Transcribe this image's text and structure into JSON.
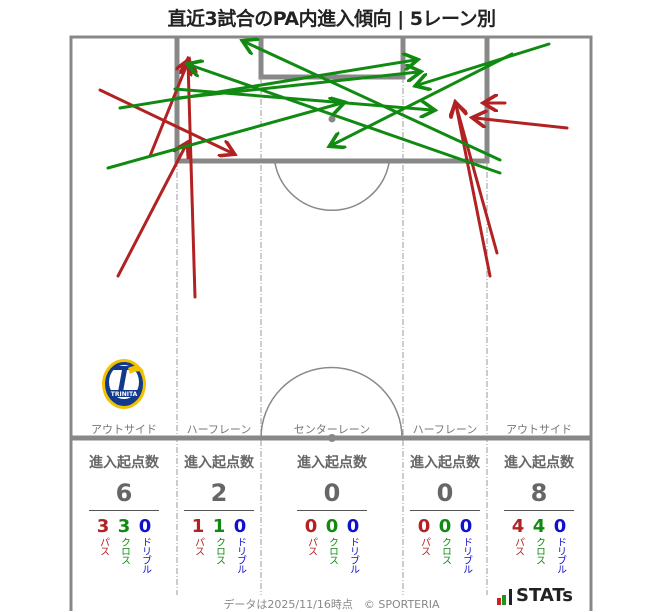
{
  "title": "直近3試合のPA内進入傾向 | 5レーン別",
  "colors": {
    "pass": "#b22222",
    "cross": "#118a11",
    "dribble": "#1111cc",
    "line": "#888888",
    "text_gray": "#666666"
  },
  "lanes": [
    {
      "label": "アウトサイド",
      "stat_header": "進入起点数",
      "total": "6",
      "pass": "3",
      "cross": "3",
      "dribble": "0"
    },
    {
      "label": "ハーフレーン",
      "stat_header": "進入起点数",
      "total": "2",
      "pass": "1",
      "cross": "1",
      "dribble": "0"
    },
    {
      "label": "センターレーン",
      "stat_header": "進入起点数",
      "total": "0",
      "pass": "0",
      "cross": "0",
      "dribble": "0"
    },
    {
      "label": "ハーフレーン",
      "stat_header": "進入起点数",
      "total": "0",
      "pass": "0",
      "cross": "0",
      "dribble": "0"
    },
    {
      "label": "アウトサイド",
      "stat_header": "進入起点数",
      "total": "8",
      "pass": "4",
      "cross": "4",
      "dribble": "0"
    }
  ],
  "breakdown_labels": {
    "pass": "パス",
    "cross": "クロス",
    "dribble": "ドリブル"
  },
  "footer": "データは2025/11/16時点　© SPORTERIA",
  "brand": "STATs",
  "team_logo": "TRINITA crest",
  "chart_data": {
    "type": "arrow-map",
    "title": "直近3試合のPA内進入傾向 | 5レーン別",
    "legend": [
      "パス (red)",
      "クロス (green)",
      "ドリブル (blue)"
    ],
    "lanes": [
      "アウトサイド",
      "ハーフレーン",
      "センターレーン",
      "ハーフレーン",
      "アウトサイド"
    ],
    "lane_totals": [
      6,
      2,
      0,
      0,
      8
    ],
    "lane_pass": [
      3,
      1,
      0,
      0,
      4
    ],
    "lane_cross": [
      3,
      1,
      0,
      0,
      4
    ],
    "lane_dribble": [
      0,
      0,
      0,
      0,
      0
    ],
    "arrows": [
      {
        "type": "pass",
        "from": [
          100,
          90
        ],
        "to": [
          232,
          153
        ]
      },
      {
        "type": "pass",
        "from": [
          150,
          156
        ],
        "to": [
          188,
          62
        ]
      },
      {
        "type": "pass",
        "from": [
          118,
          276
        ],
        "to": [
          186,
          145
        ]
      },
      {
        "type": "pass",
        "from": [
          195,
          297
        ],
        "to": [
          188,
          62
        ]
      },
      {
        "type": "pass",
        "from": [
          497,
          253
        ],
        "to": [
          456,
          105
        ]
      },
      {
        "type": "pass",
        "from": [
          490,
          276
        ],
        "to": [
          456,
          105
        ]
      },
      {
        "type": "pass",
        "from": [
          505,
          103
        ],
        "to": [
          486,
          103
        ]
      },
      {
        "type": "pass",
        "from": [
          567,
          128
        ],
        "to": [
          475,
          118
        ]
      },
      {
        "type": "cross",
        "from": [
          549,
          44
        ],
        "to": [
          418,
          85
        ]
      },
      {
        "type": "cross",
        "from": [
          512,
          54
        ],
        "to": [
          332,
          145
        ]
      },
      {
        "type": "cross",
        "from": [
          500,
          160
        ],
        "to": [
          245,
          42
        ]
      },
      {
        "type": "cross",
        "from": [
          500,
          173
        ],
        "to": [
          190,
          65
        ]
      },
      {
        "type": "cross",
        "from": [
          120,
          108
        ],
        "to": [
          415,
          60
        ]
      },
      {
        "type": "cross",
        "from": [
          178,
          98
        ],
        "to": [
          418,
          72
        ]
      },
      {
        "type": "cross",
        "from": [
          175,
          89
        ],
        "to": [
          432,
          110
        ]
      },
      {
        "type": "cross",
        "from": [
          108,
          168
        ],
        "to": [
          342,
          103
        ]
      }
    ]
  }
}
